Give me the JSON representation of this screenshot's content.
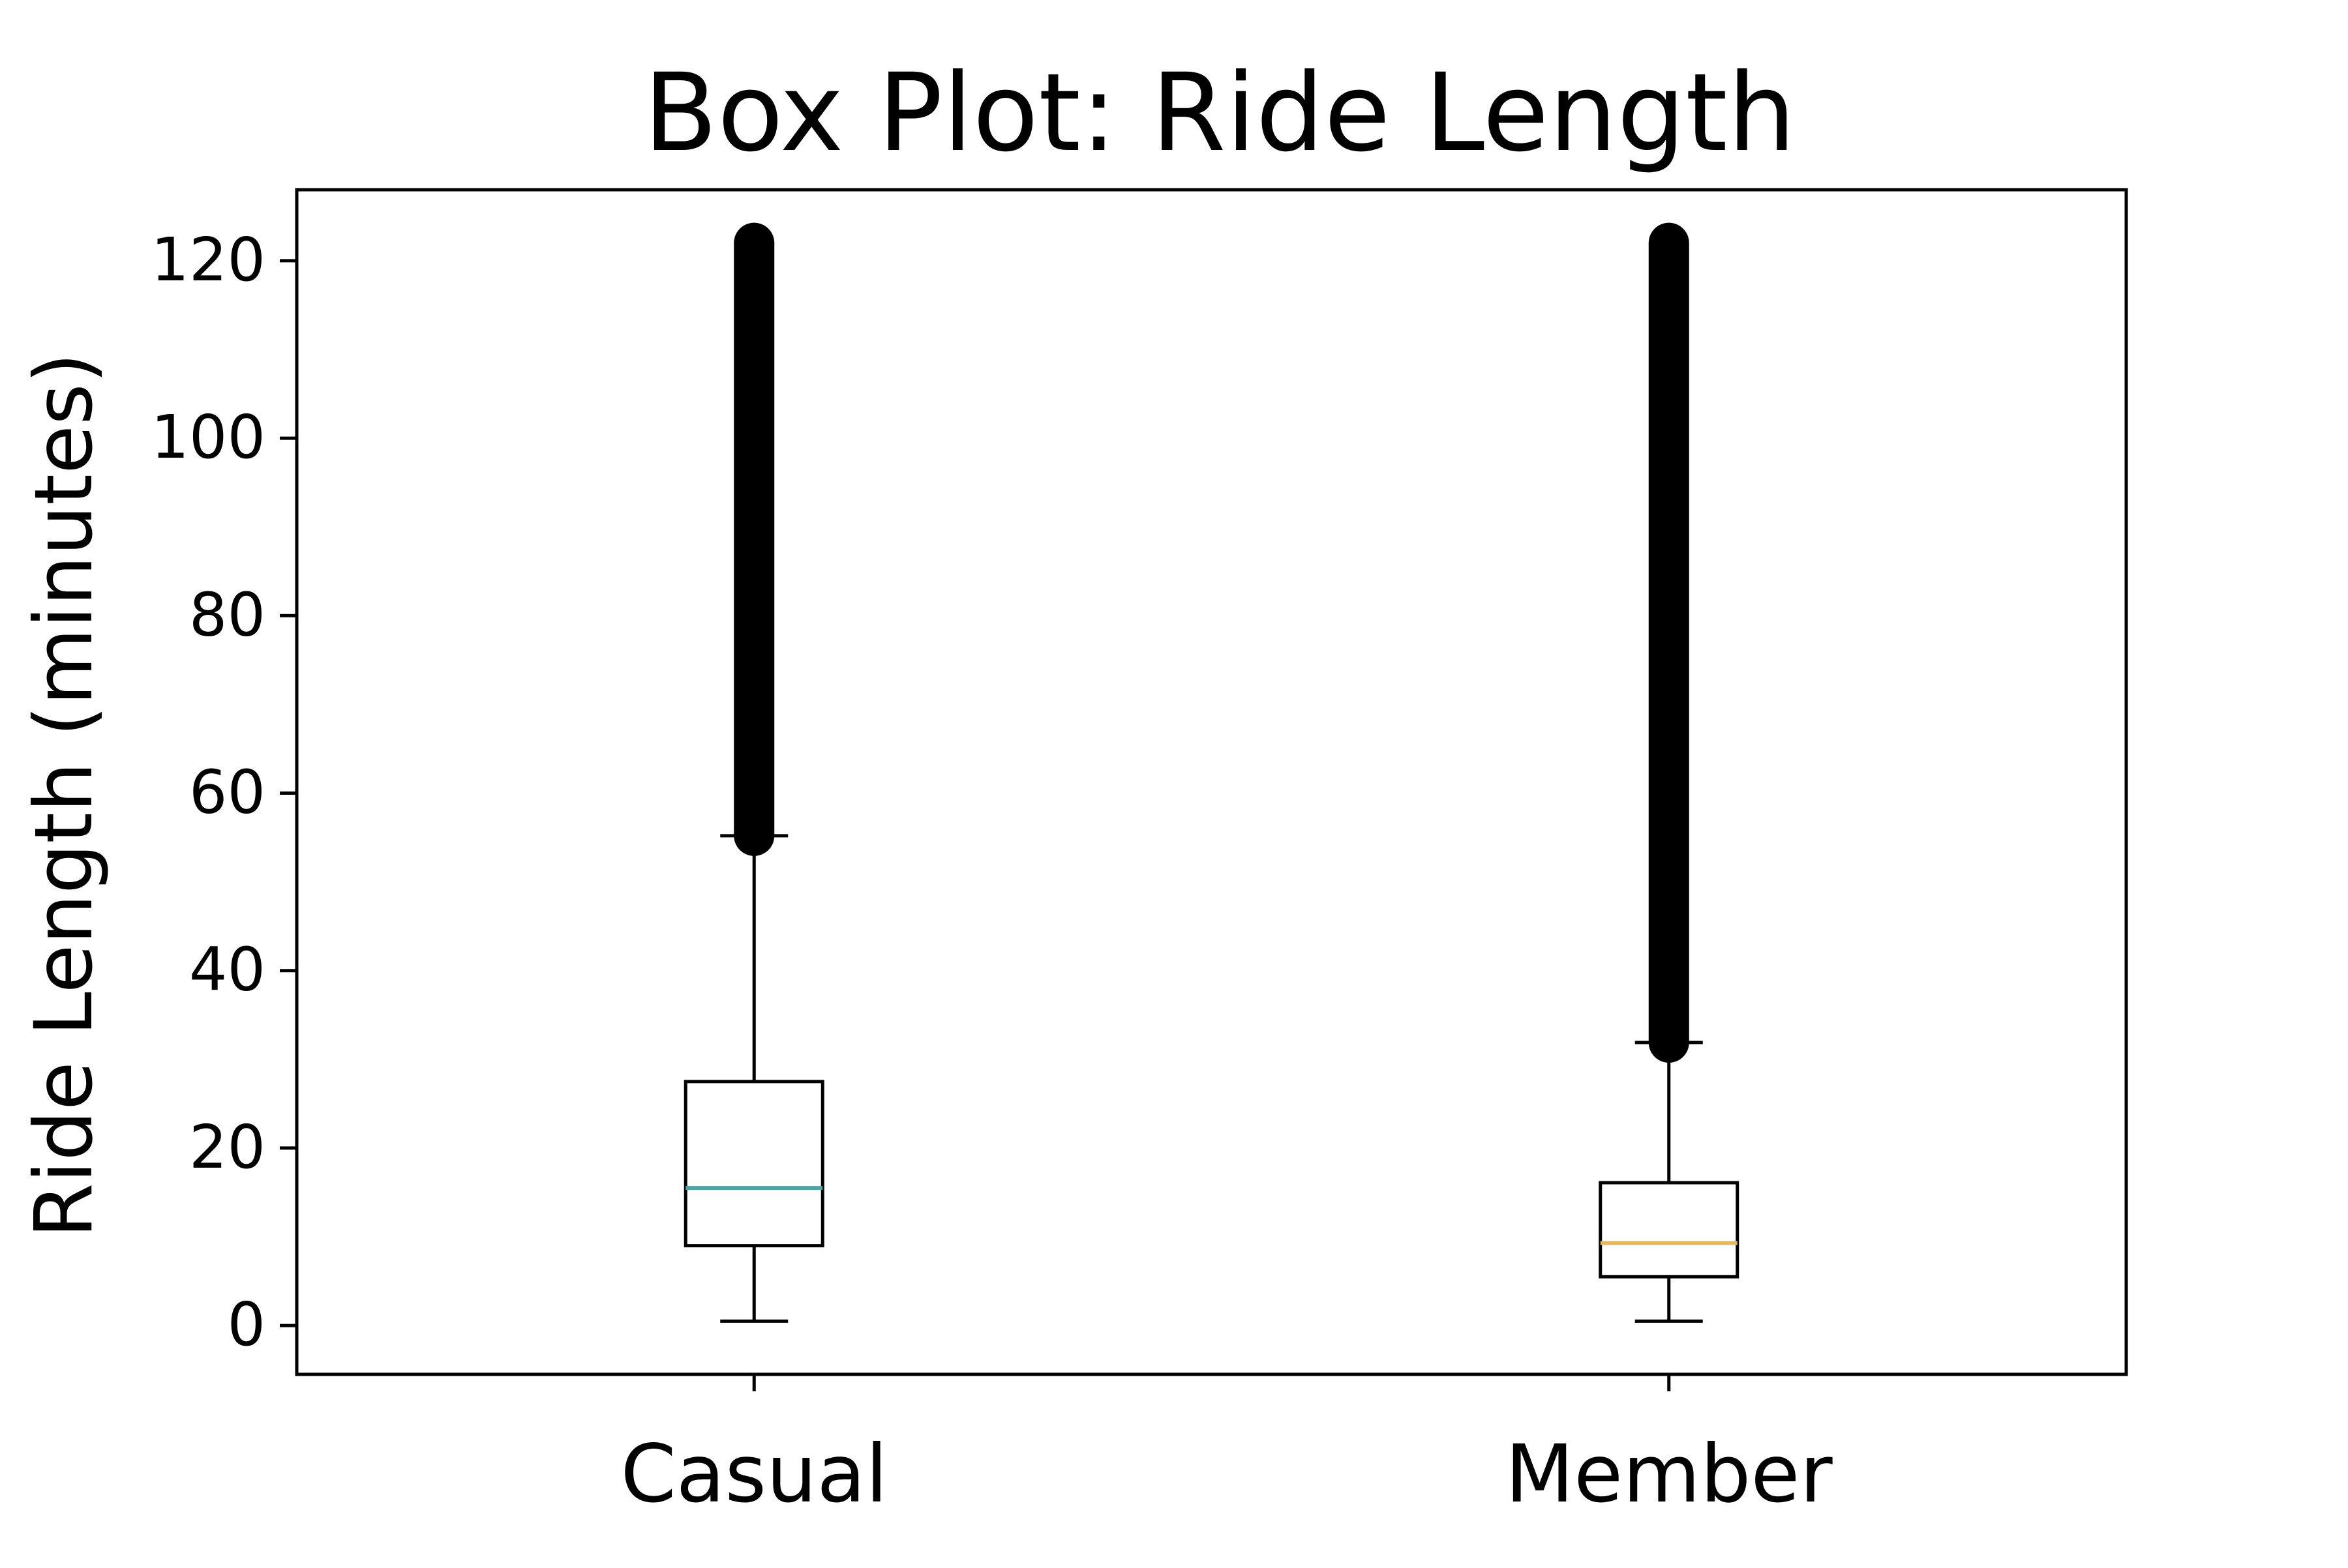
{
  "chart_data": {
    "type": "box",
    "title": "Box Plot: Ride Length",
    "xlabel": "",
    "ylabel": "Ride Length (minutes)",
    "categories": [
      "Casual",
      "Member"
    ],
    "ylim": [
      -5.5,
      128
    ],
    "yticks": [
      0,
      20,
      40,
      60,
      80,
      100,
      120
    ],
    "grid": false,
    "series": [
      {
        "category": "Casual",
        "whisker_low": 0.5,
        "q1": 9,
        "median": 15.5,
        "q3": 27.5,
        "whisker_high": 55.2,
        "outlier_min": 55.2,
        "outlier_max": 122,
        "median_color": "#4aa7a1"
      },
      {
        "category": "Member",
        "whisker_low": 0.5,
        "q1": 5.5,
        "median": 9.3,
        "q3": 16.1,
        "whisker_high": 31.9,
        "outlier_min": 31.9,
        "outlier_max": 122,
        "median_color": "#e6b85c"
      }
    ]
  }
}
